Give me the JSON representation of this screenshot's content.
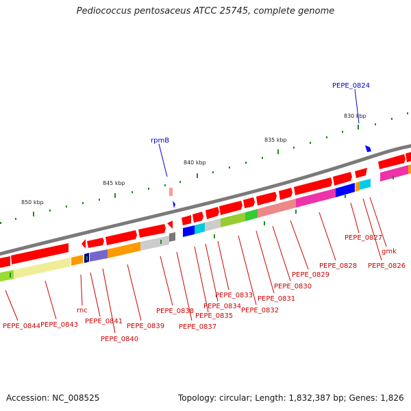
{
  "title": "Pediococcus pentosaceus ATCC 25745, complete genome",
  "footer": {
    "accession_text": "Accession: NC_008525",
    "summary_text": "Topology: circular; Length: 1,832,387 bp; Genes: 1,826"
  },
  "colors": {
    "gene_red": "#ff0000",
    "backbone": "#7a7a7a",
    "label_red": "#cc0000",
    "label_blue": "#0000cc",
    "tick_green": "#228b22"
  },
  "position_labels": [
    "830 kbp",
    "835 kbp",
    "840 kbp",
    "845 kbp",
    "850 kbp"
  ],
  "gene_labels": {
    "PEPE_0824": "PEPE_0824",
    "rpmB": "rpmB",
    "PEPE_0827": "PEPE_0827",
    "gmk": "gmk",
    "PEPE_0826": "PEPE_0826",
    "PEPE_0828": "PEPE_0828",
    "PEPE_0829": "PEPE_0829",
    "PEPE_0830": "PEPE_0830",
    "PEPE_0831": "PEPE_0831",
    "PEPE_0833": "PEPE_0833",
    "PEPE_0832": "PEPE_0832",
    "PEPE_0834": "PEPE_0834",
    "PEPE_0835": "PEPE_0835",
    "PEPE_0838": "PEPE_0838",
    "PEPE_0837": "PEPE_0837",
    "PEPE_0839": "PEPE_0839",
    "rnc": "rnc",
    "PEPE_0841": "PEPE_0841",
    "PEPE_0840": "PEPE_0840",
    "PEPE_0844": "PEPE_0844",
    "PEPE_0843": "PEPE_0843"
  }
}
